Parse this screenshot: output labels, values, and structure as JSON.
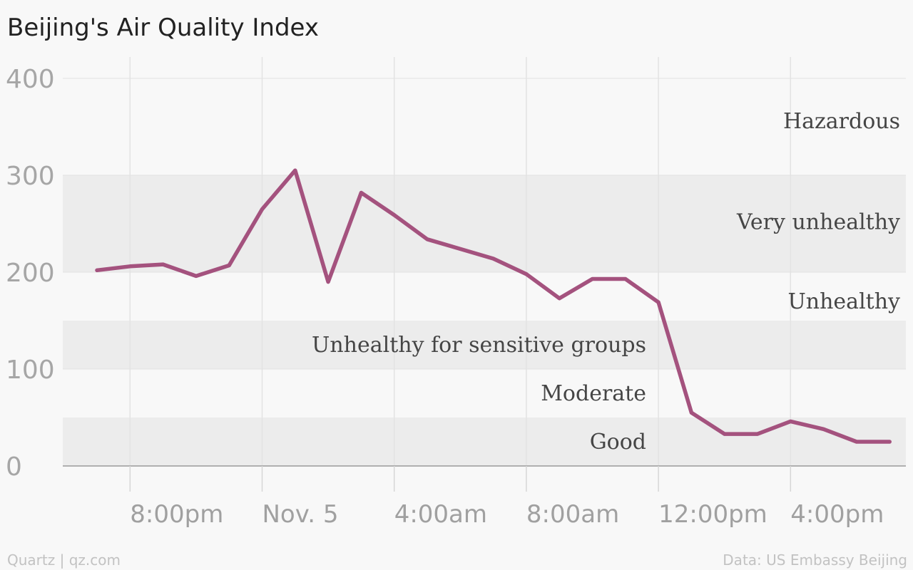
{
  "chart_data": {
    "type": "line",
    "title": "Beijing's Air Quality Index",
    "xlabel": "",
    "ylabel": "",
    "ylim": [
      0,
      400
    ],
    "yticks": [
      0,
      100,
      200,
      300,
      400
    ],
    "x_tick_labels": [
      {
        "x": 2,
        "label": "8:00pm"
      },
      {
        "x": 6,
        "label": "Nov. 5"
      },
      {
        "x": 10,
        "label": "4:00am"
      },
      {
        "x": 14,
        "label": "8:00am"
      },
      {
        "x": 18,
        "label": "12:00pm"
      },
      {
        "x": 22,
        "label": "4:00pm"
      }
    ],
    "x_range": [
      -1,
      25
    ],
    "series": [
      {
        "color": "#a4527e",
        "x": [
          1,
          2,
          3,
          4,
          5,
          6,
          7,
          8,
          9,
          10,
          11,
          12,
          13,
          14,
          15,
          16,
          17,
          18,
          19,
          20,
          21,
          22,
          23,
          24,
          25
        ],
        "values": [
          202,
          206,
          208,
          196,
          207,
          265,
          305,
          190,
          282,
          259,
          234,
          224,
          214,
          198,
          173,
          193,
          193,
          169,
          55,
          33,
          33,
          46,
          38,
          25,
          25
        ]
      }
    ],
    "bands": [
      {
        "label": "Good",
        "from": 0,
        "to": 50,
        "fill": "#ececec"
      },
      {
        "label": "Moderate",
        "from": 50,
        "to": 100,
        "fill": "#f8f8f8"
      },
      {
        "label": "Unhealthy for sensitive groups",
        "from": 100,
        "to": 150,
        "fill": "#ececec"
      },
      {
        "label": "Unhealthy",
        "from": 150,
        "to": 200,
        "fill": "#f8f8f8"
      },
      {
        "label": "Very unhealthy",
        "from": 200,
        "to": 300,
        "fill": "#ececec"
      },
      {
        "label": "Hazardous",
        "from": 300,
        "to": 400,
        "fill": "#f8f8f8"
      }
    ],
    "grid": true
  },
  "footer": {
    "left": "Quartz | qz.com",
    "right": "Data: US Embassy Beijing"
  },
  "colors": {
    "line": "#a4527e",
    "band_shade": "#ececec",
    "background": "#f8f8f8",
    "grid": "#e0e0e0",
    "axis": "#9a9a9a"
  }
}
